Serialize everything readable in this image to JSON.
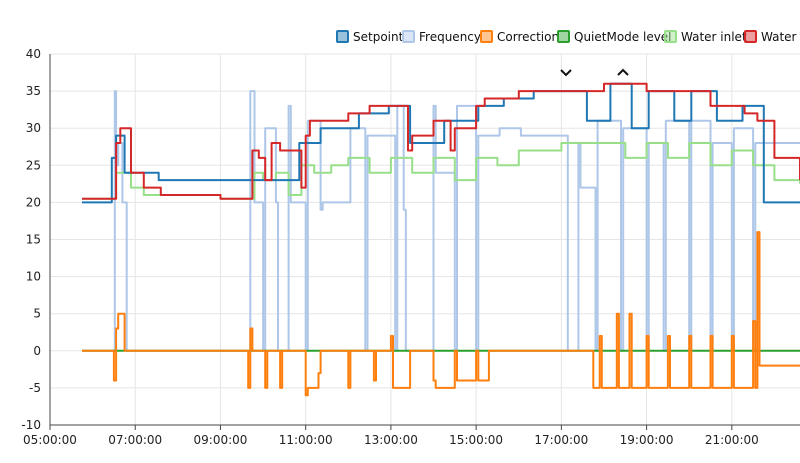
{
  "chart_data": {
    "type": "line",
    "title": "",
    "xlabel": "",
    "ylabel": "",
    "ylim": [
      -10,
      40
    ],
    "y_ticks": [
      -10,
      -5,
      0,
      5,
      10,
      15,
      20,
      25,
      30,
      35,
      40
    ],
    "x_ticks": [
      "05:00:00",
      "07:00:00",
      "09:00:00",
      "11:00:00",
      "13:00:00",
      "15:00:00",
      "17:00:00",
      "19:00:00",
      "21:00:00"
    ],
    "x_tick_hours": [
      5,
      7,
      9,
      11,
      13,
      15,
      17,
      19,
      21
    ],
    "xlim_hours": [
      5.0,
      22.6
    ],
    "grid": true,
    "legend_position": "top-right",
    "series": [
      {
        "name": "Setpoint",
        "color": "#1f77b4",
        "x_hours": [
          5.75,
          6.4,
          6.45,
          6.55,
          6.7,
          6.75,
          7.5,
          7.55,
          10.8,
          10.85,
          11.3,
          11.35,
          12.2,
          12.25,
          12.9,
          12.95,
          13.4,
          13.45,
          14.2,
          14.25,
          15.0,
          15.05,
          15.6,
          15.65,
          16.3,
          16.35,
          17.2,
          17.25,
          17.55,
          17.6,
          18.1,
          18.15,
          18.6,
          18.65,
          19.0,
          19.05,
          19.6,
          19.65,
          20.0,
          20.05,
          20.6,
          20.65,
          21.2,
          21.25,
          21.7,
          21.75,
          22.6
        ],
        "values": [
          20,
          20,
          26,
          29,
          29,
          24,
          24,
          23,
          23,
          28,
          28,
          30,
          30,
          32,
          32,
          33,
          33,
          28,
          28,
          31,
          31,
          33,
          33,
          34,
          34,
          35,
          35,
          35,
          35,
          31,
          31,
          36,
          36,
          30,
          30,
          35,
          35,
          31,
          31,
          35,
          35,
          31,
          31,
          33,
          33,
          20,
          20
        ]
      },
      {
        "name": "Frequency",
        "color": "#aec7e8",
        "x_hours": [
          5.75,
          6.5,
          6.52,
          6.55,
          6.6,
          6.7,
          6.8,
          6.85,
          9.65,
          9.7,
          9.8,
          10.0,
          10.05,
          10.3,
          10.35,
          10.6,
          10.65,
          11.0,
          11.05,
          11.35,
          11.4,
          12.0,
          12.05,
          12.4,
          12.45,
          13.1,
          13.15,
          13.3,
          13.35,
          14.0,
          14.05,
          14.5,
          14.55,
          15.0,
          15.05,
          15.5,
          15.55,
          16.0,
          16.05,
          17.1,
          17.15,
          17.4,
          17.45,
          17.8,
          17.85,
          18.4,
          18.45,
          19.0,
          19.05,
          19.4,
          19.45,
          20.0,
          20.05,
          20.5,
          20.55,
          21.0,
          21.05,
          21.5,
          21.55,
          22.6
        ],
        "values": [
          0,
          0,
          35,
          25,
          28,
          20,
          0,
          0,
          0,
          35,
          20,
          0,
          30,
          20,
          0,
          33,
          20,
          0,
          31,
          19,
          20,
          20,
          30,
          0,
          29,
          0,
          33,
          19,
          0,
          33,
          24,
          0,
          33,
          0,
          29,
          29,
          30,
          30,
          29,
          29,
          0,
          28,
          22,
          0,
          31,
          0,
          30,
          0,
          28,
          0,
          31,
          0,
          31,
          0,
          28,
          0,
          30,
          0,
          28,
          28
        ]
      },
      {
        "name": "Correction",
        "color": "#ff7f0e",
        "x_hours": [
          5.75,
          6.45,
          6.5,
          6.55,
          6.6,
          6.7,
          6.75,
          9.6,
          9.65,
          9.7,
          9.75,
          10.05,
          10.1,
          10.4,
          10.45,
          11.0,
          11.05,
          11.3,
          11.35,
          12.0,
          12.05,
          12.6,
          12.65,
          13.0,
          13.05,
          13.4,
          13.45,
          14.0,
          14.05,
          14.5,
          14.55,
          15.0,
          15.05,
          15.3,
          15.35,
          16.5,
          16.55,
          17.7,
          17.75,
          17.9,
          17.95,
          18.3,
          18.35,
          18.6,
          18.65,
          19.0,
          19.05,
          19.5,
          19.55,
          20.0,
          20.05,
          20.5,
          20.55,
          21.0,
          21.05,
          21.5,
          21.55,
          21.6,
          21.65,
          22.6
        ],
        "values": [
          0,
          0,
          -4,
          3,
          5,
          5,
          0,
          0,
          -5,
          3,
          0,
          -5,
          0,
          -5,
          0,
          -6,
          -5,
          -3,
          0,
          -5,
          0,
          -4,
          0,
          2,
          -5,
          -5,
          0,
          -4,
          -5,
          0,
          -4,
          0,
          -4,
          0,
          0,
          0,
          0,
          0,
          -5,
          2,
          -5,
          5,
          -5,
          5,
          -5,
          2,
          -5,
          2,
          -5,
          2,
          -5,
          2,
          -5,
          2,
          -5,
          4,
          -5,
          16,
          -2,
          -2
        ]
      },
      {
        "name": "QuietMode level",
        "color": "#2ca02c",
        "x_hours": [
          5.75,
          11.0,
          11.05,
          16.2,
          16.25,
          22.6
        ],
        "values": [
          0,
          0,
          0,
          0,
          0,
          0
        ]
      },
      {
        "name": "Water inlet",
        "color": "#98df8a",
        "x_hours": [
          5.75,
          6.4,
          6.55,
          6.7,
          6.9,
          7.2,
          7.6,
          8.0,
          9.0,
          9.65,
          9.8,
          10.0,
          10.3,
          10.6,
          10.9,
          11.2,
          11.6,
          12.0,
          12.5,
          13.0,
          13.5,
          14.0,
          14.5,
          15.0,
          15.5,
          16.0,
          16.5,
          17.0,
          17.5,
          18.0,
          18.5,
          19.0,
          19.5,
          20.0,
          20.5,
          21.0,
          21.5,
          22.0,
          22.6
        ],
        "values": [
          20.5,
          20.5,
          24,
          24,
          22,
          21,
          21,
          21,
          20.5,
          20.5,
          24,
          23,
          24,
          21,
          25,
          24,
          25,
          26,
          24,
          26,
          24,
          26,
          23,
          26,
          25,
          27,
          27,
          28,
          28,
          28,
          26,
          28,
          26,
          28,
          25,
          27,
          25,
          23,
          22.5
        ]
      },
      {
        "name": "Water o",
        "color": "#d62728",
        "x_hours": [
          5.75,
          6.45,
          6.55,
          6.65,
          6.75,
          6.9,
          7.2,
          7.6,
          8.0,
          9.0,
          9.65,
          9.75,
          9.9,
          10.05,
          10.2,
          10.4,
          10.6,
          10.9,
          11.0,
          11.1,
          11.5,
          12.0,
          12.5,
          13.0,
          13.4,
          13.5,
          14.0,
          14.4,
          14.5,
          15.0,
          15.2,
          15.4,
          16.0,
          16.5,
          17.0,
          17.5,
          17.7,
          18.0,
          18.2,
          18.5,
          19.0,
          19.2,
          19.5,
          20.0,
          20.3,
          20.5,
          21.0,
          21.3,
          21.6,
          22.0,
          22.6
        ],
        "values": [
          20.5,
          20.5,
          28,
          30,
          30,
          24,
          22,
          21,
          21,
          20.5,
          20.5,
          27,
          26,
          23,
          28,
          27,
          27,
          22,
          29,
          31,
          31,
          32,
          33,
          33,
          27,
          29,
          31,
          27,
          30,
          33,
          34,
          34,
          35,
          35,
          35,
          35,
          35,
          36,
          36,
          36,
          35,
          35,
          35,
          35,
          35,
          33,
          33,
          32,
          31,
          26,
          23
        ]
      }
    ]
  },
  "chart_icons": {
    "zoom_down": "chevron-down-icon",
    "zoom_up": "chevron-up-icon"
  }
}
